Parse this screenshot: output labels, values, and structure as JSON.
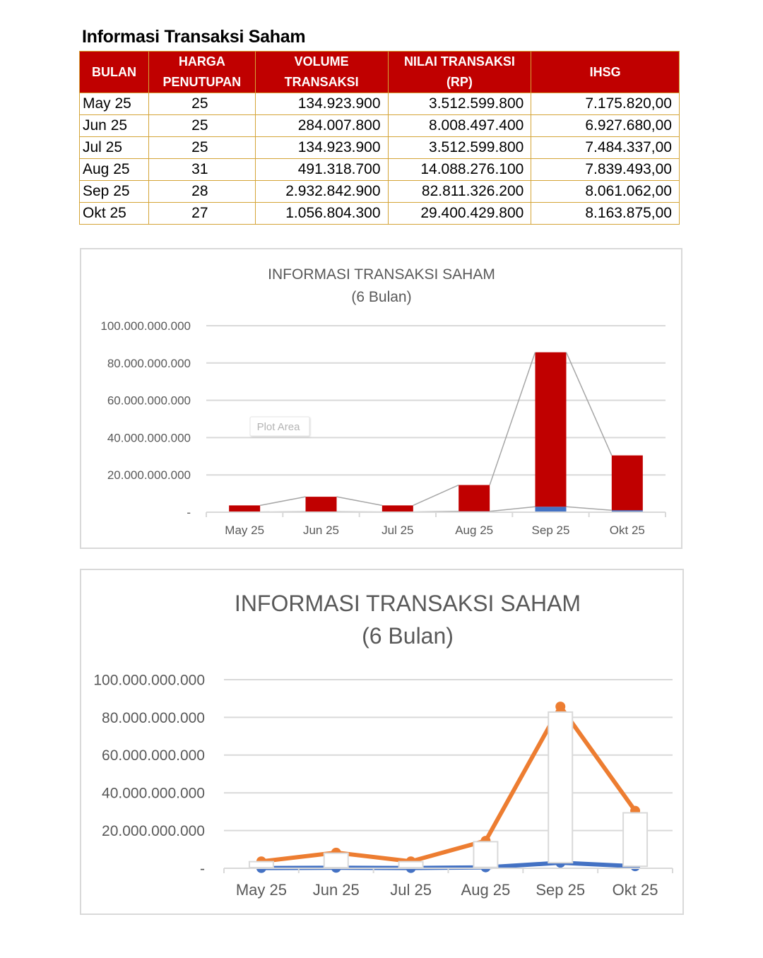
{
  "page": {
    "title": "Informasi Transaksi Saham"
  },
  "table": {
    "headers": [
      "BULAN",
      "HARGA PENUTUPAN",
      "VOLUME TRANSAKSI",
      "NILAI TRANSAKSI (RP)",
      "IHSG"
    ],
    "header_lines": [
      [
        "BULAN"
      ],
      [
        "HARGA",
        "PENUTUPAN"
      ],
      [
        "VOLUME",
        "TRANSAKSI"
      ],
      [
        "NILAI TRANSAKSI",
        "(RP)"
      ],
      [
        "IHSG"
      ]
    ],
    "rows": [
      {
        "bulan": "May 25",
        "harga": "25",
        "volume": "134.923.900",
        "nilai": "3.512.599.800",
        "ihsg": "7.175.820,00"
      },
      {
        "bulan": "Jun 25",
        "harga": "25",
        "volume": "284.007.800",
        "nilai": "8.008.497.400",
        "ihsg": "6.927.680,00"
      },
      {
        "bulan": "Jul 25",
        "harga": "25",
        "volume": "134.923.900",
        "nilai": "3.512.599.800",
        "ihsg": "7.484.337,00"
      },
      {
        "bulan": "Aug 25",
        "harga": "31",
        "volume": "491.318.700",
        "nilai": "14.088.276.100",
        "ihsg": "7.839.493,00"
      },
      {
        "bulan": "Sep 25",
        "harga": "28",
        "volume": "2.932.842.900",
        "nilai": "82.811.326.200",
        "ihsg": "8.061.062,00"
      },
      {
        "bulan": "Okt 25",
        "harga": "27",
        "volume": "1.056.804.300",
        "nilai": "29.400.429.800",
        "ihsg": "8.163.875,00"
      }
    ],
    "colors": {
      "header_bg": "#c00000",
      "header_text": "#ffffff",
      "border": "#d4a437"
    }
  },
  "chart_data": [
    {
      "type": "bar",
      "stacked": true,
      "title": "INFORMASI TRANSAKSI SAHAM",
      "subtitle": "(6 Bulan)",
      "xlabel": "",
      "ylabel": "",
      "ylim": [
        0,
        100000000000
      ],
      "yticks": [
        0,
        20000000000,
        40000000000,
        60000000000,
        80000000000,
        100000000000
      ],
      "ytick_labels": [
        "-",
        "20.000.000.000",
        "40.000.000.000",
        "60.000.000.000",
        "80.000.000.000",
        "100.000.000.000"
      ],
      "categories": [
        "May 25",
        "Jun 25",
        "Jul 25",
        "Aug 25",
        "Sep 25",
        "Okt 25"
      ],
      "series": [
        {
          "name": "Volume Transaksi",
          "color": "#4472c4",
          "values": [
            134923900,
            284007800,
            134923900,
            491318700,
            2932842900,
            1056804300
          ]
        },
        {
          "name": "Nilai Transaksi (Rp)",
          "color": "#c00000",
          "values": [
            3512599800,
            8008497400,
            3512599800,
            14088276100,
            82811326200,
            29400429800
          ]
        }
      ],
      "series_lines": {
        "color": "#a6a6a6"
      },
      "grid": true,
      "legend": "none",
      "annotation": "Plot Area"
    },
    {
      "type": "line",
      "stacked": true,
      "title": "INFORMASI TRANSAKSI SAHAM",
      "subtitle": "(6 Bulan)",
      "xlabel": "",
      "ylabel": "",
      "ylim": [
        0,
        100000000000
      ],
      "yticks": [
        0,
        20000000000,
        40000000000,
        60000000000,
        80000000000,
        100000000000
      ],
      "ytick_labels": [
        "-",
        "20.000.000.000",
        "40.000.000.000",
        "60.000.000.000",
        "80.000.000.000",
        "100.000.000.000"
      ],
      "categories": [
        "May 25",
        "Jun 25",
        "Jul 25",
        "Aug 25",
        "Sep 25",
        "Okt 25"
      ],
      "series": [
        {
          "name": "Volume Transaksi",
          "color": "#4472c4",
          "values": [
            134923900,
            284007800,
            134923900,
            491318700,
            2932842900,
            1056804300
          ]
        },
        {
          "name": "Nilai Transaksi (Rp)",
          "color": "#ed7d31",
          "values": [
            3512599800,
            8008497400,
            3512599800,
            14088276100,
            82811326200,
            29400429800
          ]
        }
      ],
      "up_down_bars": {
        "fill": "#ffffff",
        "stroke": "#d9d9d9"
      },
      "grid": true,
      "legend": "none"
    }
  ],
  "chart1": {
    "title": "INFORMASI TRANSAKSI SAHAM",
    "subtitle": "(6 Bulan)",
    "tooltip": "Plot Area",
    "yticks": [
      "100.000.000.000",
      "80.000.000.000",
      "60.000.000.000",
      "40.000.000.000",
      "20.000.000.000",
      "-"
    ],
    "categories": [
      "May 25",
      "Jun 25",
      "Jul 25",
      "Aug 25",
      "Sep 25",
      "Okt 25"
    ]
  },
  "chart2": {
    "title": "INFORMASI TRANSAKSI SAHAM",
    "subtitle": "(6 Bulan)",
    "yticks": [
      "100.000.000.000",
      "80.000.000.000",
      "60.000.000.000",
      "40.000.000.000",
      "20.000.000.000",
      "-"
    ],
    "categories": [
      "May 25",
      "Jun 25",
      "Jul 25",
      "Aug 25",
      "Sep 25",
      "Okt 25"
    ]
  }
}
